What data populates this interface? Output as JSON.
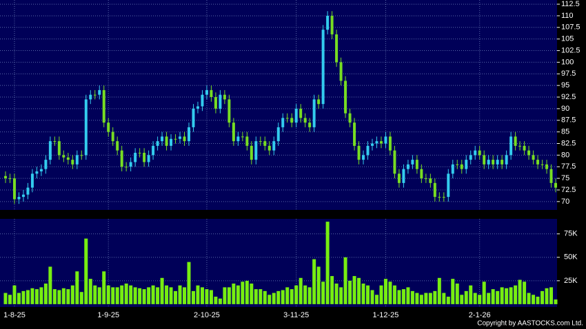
{
  "chart_data": {
    "type": "candlestick",
    "categories": [
      null,
      null,
      "1-8-25",
      null,
      null,
      null,
      null,
      null,
      null,
      null,
      null,
      null,
      null,
      null,
      null,
      null,
      null,
      null,
      null,
      null,
      null,
      null,
      null,
      "1-9-25",
      null,
      null,
      null,
      null,
      null,
      null,
      null,
      null,
      null,
      null,
      null,
      null,
      null,
      null,
      null,
      null,
      null,
      null,
      null,
      null,
      null,
      "2-10-25",
      null,
      null,
      null,
      null,
      null,
      null,
      null,
      null,
      null,
      null,
      null,
      null,
      null,
      null,
      null,
      null,
      null,
      null,
      null,
      "3-11-25",
      null,
      null,
      null,
      null,
      null,
      null,
      null,
      null,
      null,
      null,
      null,
      null,
      null,
      null,
      null,
      null,
      null,
      null,
      null,
      "1-12-25",
      null,
      null,
      null,
      null,
      null,
      null,
      null,
      null,
      null,
      null,
      null,
      null,
      null,
      null,
      null,
      null,
      null,
      null,
      null,
      null,
      "2-1-26",
      null,
      null,
      null,
      null,
      null,
      null,
      null,
      null,
      null,
      null,
      null,
      null,
      null,
      null,
      null,
      null,
      null
    ],
    "open": [
      75.5,
      75,
      75,
      70.5,
      71,
      71.5,
      73,
      76,
      76.5,
      77,
      79,
      83,
      83,
      80,
      79.5,
      79,
      78,
      80,
      80,
      92,
      93,
      93,
      94,
      87,
      85,
      83,
      81,
      77.5,
      77.5,
      78.5,
      80.5,
      80.5,
      78.5,
      80,
      82,
      83,
      84,
      82,
      83.5,
      83.5,
      84,
      83,
      86,
      90,
      90.5,
      93,
      94,
      92.5,
      90,
      93,
      92,
      87,
      83,
      84,
      84,
      82,
      79,
      83,
      83,
      82,
      81,
      83,
      86,
      88,
      88,
      87,
      90,
      88,
      87,
      86,
      92,
      91,
      107,
      110,
      106,
      100,
      96,
      89,
      87,
      82,
      79,
      80,
      82,
      82.5,
      83,
      82.5,
      84,
      81,
      76,
      74,
      77,
      78,
      79,
      77,
      75,
      75,
      74,
      71,
      71,
      71,
      76,
      78,
      78,
      77,
      79,
      80,
      81,
      80,
      78,
      79,
      78,
      79,
      78,
      80,
      84,
      82,
      82,
      81,
      80,
      79,
      78,
      78,
      77,
      74
    ],
    "high": [
      76.5,
      76,
      76,
      72,
      72.5,
      74,
      77,
      77.5,
      78,
      80,
      84,
      84,
      84,
      81,
      80.5,
      80,
      81,
      81,
      93,
      94,
      94,
      95,
      95,
      88,
      86,
      84,
      82,
      78.5,
      79.5,
      81.5,
      81.5,
      81.5,
      81,
      83,
      84,
      85,
      85,
      84.5,
      84.5,
      85,
      85,
      87,
      91,
      91.5,
      94,
      95,
      95,
      93.5,
      94,
      94,
      93,
      88,
      85,
      85,
      85,
      83,
      84,
      84,
      84,
      83,
      84,
      87,
      89,
      89,
      89,
      91,
      91,
      89,
      88,
      93,
      93,
      108,
      111,
      111,
      107,
      101,
      97,
      90,
      88,
      83,
      81,
      83,
      83.5,
      84,
      84,
      85,
      85,
      82,
      77,
      78,
      79,
      80,
      80,
      78,
      76,
      76,
      75,
      72,
      72,
      77,
      79,
      79,
      79,
      80,
      81,
      82,
      82,
      81,
      80,
      80,
      80,
      80,
      81,
      85,
      85,
      83,
      83,
      82,
      81,
      80,
      79,
      79,
      78,
      75
    ],
    "low": [
      74,
      74,
      69.5,
      69.5,
      70,
      70.5,
      72,
      75,
      75.5,
      76,
      78,
      82,
      79,
      78.5,
      78,
      77,
      77,
      79,
      79,
      91,
      92,
      92,
      86,
      84,
      82,
      80,
      76.5,
      76.5,
      76.5,
      77.5,
      79.5,
      77.5,
      77.5,
      79,
      81,
      82,
      81,
      81,
      82.5,
      82.5,
      82,
      82,
      85,
      89,
      89.5,
      92,
      91.5,
      89,
      89,
      91,
      86,
      82,
      82,
      83,
      81,
      78,
      78,
      82,
      81,
      80,
      80,
      82,
      85,
      87,
      86,
      86,
      87,
      86,
      85,
      85,
      90,
      90,
      106,
      105,
      99,
      95,
      88,
      86,
      81,
      78,
      78,
      79,
      81,
      81.5,
      81.5,
      81.5,
      80,
      75,
      73,
      73,
      76,
      77,
      76,
      74,
      74,
      73,
      70,
      70,
      70,
      70,
      75,
      77,
      76,
      76,
      78,
      79,
      79,
      77,
      77,
      77,
      77,
      77,
      77,
      79,
      81,
      81,
      80,
      79,
      78,
      77,
      77,
      76,
      73,
      72
    ],
    "close": [
      75,
      75,
      70.5,
      71,
      71.5,
      73,
      76,
      76.5,
      77,
      79,
      83,
      83,
      80,
      79.5,
      79,
      78,
      80,
      80,
      92,
      93,
      93,
      94,
      87,
      85,
      83,
      81,
      77.5,
      77.5,
      78.5,
      80.5,
      80.5,
      78.5,
      80,
      82,
      83,
      84,
      82,
      83.5,
      83.5,
      84,
      83,
      86,
      90,
      90.5,
      93,
      94,
      92.5,
      90,
      93,
      92,
      87,
      83,
      84,
      84,
      82,
      79,
      83,
      83,
      82,
      81,
      83,
      86,
      88,
      88,
      87,
      90,
      88,
      87,
      86,
      92,
      91,
      107,
      110,
      106,
      100,
      96,
      89,
      87,
      82,
      79,
      80,
      82,
      82.5,
      83,
      82.5,
      84,
      81,
      76,
      74,
      77,
      78,
      79,
      77,
      75,
      75,
      74,
      71,
      71,
      71,
      76,
      78,
      78,
      77,
      79,
      80,
      81,
      80,
      78,
      79,
      78,
      79,
      78,
      80,
      84,
      82,
      82,
      81,
      80,
      79,
      78,
      78,
      77,
      74,
      73
    ],
    "volume": [
      12000,
      10000,
      20000,
      12000,
      14000,
      15000,
      17000,
      16000,
      18000,
      22000,
      40000,
      16000,
      15000,
      17000,
      16000,
      20000,
      35000,
      13000,
      70000,
      27000,
      20000,
      18000,
      35000,
      20000,
      18000,
      18000,
      20000,
      22000,
      20000,
      18000,
      17000,
      16000,
      18000,
      20000,
      18000,
      28000,
      20000,
      18000,
      14000,
      20000,
      18000,
      45000,
      14000,
      20000,
      18000,
      16000,
      15000,
      8000,
      6000,
      18000,
      18000,
      22000,
      20000,
      24000,
      25000,
      22000,
      16000,
      16000,
      14000,
      10000,
      12000,
      14000,
      15000,
      18000,
      16000,
      20000,
      28000,
      20000,
      18000,
      48000,
      40000,
      24000,
      88000,
      30000,
      22000,
      18000,
      50000,
      25000,
      30000,
      28000,
      22000,
      20000,
      15000,
      10000,
      20000,
      27000,
      24000,
      20000,
      15000,
      16000,
      18000,
      14000,
      12000,
      10000,
      12000,
      12000,
      14000,
      28000,
      12000,
      8000,
      27000,
      22000,
      10000,
      14000,
      20000,
      12000,
      10000,
      24000,
      12000,
      16000,
      14000,
      18000,
      17000,
      18000,
      20000,
      26000,
      24000,
      12000,
      10000,
      8000,
      14000,
      17000,
      18000,
      5000
    ],
    "up_color": "#33ccee",
    "down_color": "#77dd22",
    "volume_color": "#77ee11",
    "ylim": [
      68.2,
      113.4
    ],
    "yticks": [
      70,
      72.5,
      75,
      77.5,
      80,
      82.5,
      85,
      87.5,
      90,
      92.5,
      95,
      97.5,
      100,
      102.5,
      105,
      107.5,
      110,
      112.5
    ],
    "y2lim": [
      -3000,
      91000
    ],
    "y2ticks": [
      {
        "value": 25000,
        "label": "25K"
      },
      {
        "value": 50000,
        "label": "50K"
      },
      {
        "value": 75000,
        "label": "75K"
      }
    ],
    "grid": true,
    "source": "Copyright by AASTOCKS.com Ltd."
  }
}
